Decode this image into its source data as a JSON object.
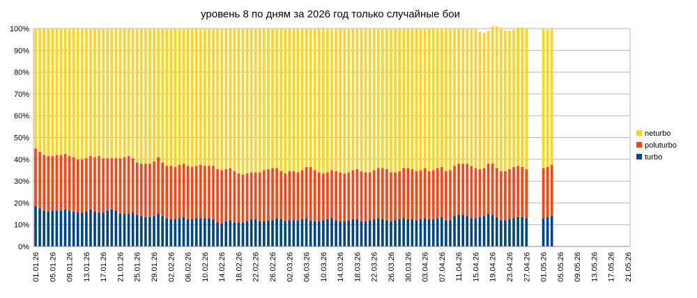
{
  "chart_data": {
    "type": "bar",
    "stacked": true,
    "percent_stacked": true,
    "title": "уровень 8 по дням за 2026 год только случайные бои",
    "xlabel": "",
    "ylabel": "",
    "ylim": [
      0,
      100
    ],
    "y_ticks": [
      "0%",
      "10%",
      "20%",
      "30%",
      "40%",
      "50%",
      "60%",
      "70%",
      "80%",
      "90%",
      "100%"
    ],
    "grid": true,
    "legend_position": "right",
    "x_start": "01.01.26",
    "x_end": "21.05.26",
    "missing_dates": [
      "28.04.26",
      "29.04.26",
      "30.04.26"
    ],
    "tick_labels": [
      "01.01.26",
      "05.01.26",
      "09.01.26",
      "13.01.26",
      "17.01.26",
      "21.01.26",
      "25.01.26",
      "29.01.26",
      "02.02.26",
      "06.02.26",
      "10.02.26",
      "14.02.26",
      "18.02.26",
      "22.02.26",
      "26.02.26",
      "02.03.26",
      "06.03.26",
      "10.03.26",
      "14.03.26",
      "18.03.26",
      "22.03.26",
      "26.03.26",
      "30.03.26",
      "03.04.26",
      "07.04.26",
      "11.04.26",
      "15.04.26",
      "19.04.26",
      "23.04.26",
      "27.04.26",
      "01.05.26",
      "05.05.26",
      "09.05.26",
      "13.05.26",
      "17.05.26",
      "21.05.26"
    ],
    "colors": {
      "turbo": "#004586",
      "poluturbo": "#ff420e",
      "neturbo": "#ffd320"
    },
    "series": [
      {
        "name": "turbo",
        "values": [
          18.5,
          17.5,
          16.5,
          16,
          16.5,
          16.5,
          16.5,
          17,
          16.5,
          16,
          15.5,
          15.5,
          16,
          17,
          16,
          15.5,
          15.5,
          16.5,
          17,
          16.5,
          15,
          15,
          15,
          15.5,
          14.5,
          14,
          13.5,
          13.5,
          14,
          15,
          14,
          13,
          12.5,
          12.5,
          13,
          13.5,
          12.5,
          12.5,
          13,
          13,
          13,
          13,
          12.5,
          11,
          10.5,
          11.5,
          12,
          11,
          11,
          11,
          11.5,
          12.5,
          12.5,
          11.5,
          11.5,
          12,
          12,
          13,
          12.5,
          11.5,
          12,
          12,
          12,
          12.5,
          13,
          12,
          11.5,
          11.5,
          12,
          12.5,
          13,
          12,
          11.5,
          11.5,
          12,
          12.5,
          12.5,
          11.5,
          11.5,
          12,
          12.5,
          13,
          12.5,
          12,
          11.5,
          12,
          12.5,
          13,
          12.5,
          12.5,
          12,
          12.5,
          13,
          12.5,
          12.5,
          13,
          13.5,
          12,
          12,
          14,
          14.5,
          14.5,
          14,
          13,
          13,
          13.5,
          14,
          15,
          14.5,
          13.5,
          12,
          12,
          12.5,
          13,
          13.5,
          13.5,
          13,
          13,
          13.5,
          14
        ]
      },
      {
        "name": "poluturbo",
        "values": [
          26.5,
          26,
          25.5,
          25.5,
          25,
          25.5,
          25.5,
          25.5,
          25,
          25,
          24.5,
          24.5,
          24.5,
          24.5,
          25,
          26,
          25,
          24,
          23.5,
          24,
          25.5,
          26,
          26.5,
          25,
          24,
          24,
          24.5,
          24.5,
          25,
          26,
          24.5,
          24,
          24.5,
          24,
          24.5,
          24.5,
          24.5,
          24,
          24,
          24.5,
          24,
          24,
          24.5,
          24.5,
          24.5,
          24,
          24,
          23.5,
          22.5,
          22,
          22,
          21.5,
          21.5,
          22.5,
          23.5,
          23.5,
          24,
          23,
          22,
          22,
          22.5,
          22.5,
          22,
          22.5,
          23.5,
          24.5,
          23.5,
          22.5,
          21.5,
          21.5,
          22,
          22.5,
          22.5,
          22,
          22,
          22.5,
          23,
          23,
          22.5,
          22,
          22.5,
          23,
          23.5,
          23.5,
          22.5,
          22,
          22,
          23,
          23.5,
          23,
          22.5,
          22.5,
          23,
          22,
          22.5,
          23,
          23,
          22.5,
          23,
          23,
          23.5,
          23.5,
          24,
          24,
          23,
          22,
          22,
          23,
          23.5,
          22.5,
          22.5,
          22.5,
          23,
          23.5,
          23.5,
          23,
          22.5,
          23,
          23,
          23.5
        ]
      },
      {
        "name": "neturbo",
        "values": [
          55,
          56.5,
          58,
          58.5,
          58.5,
          58,
          58,
          57.5,
          58.5,
          59,
          60,
          60,
          59.5,
          58.5,
          59,
          58.5,
          59.5,
          59.5,
          59.5,
          59.5,
          59.5,
          59,
          58.5,
          59.5,
          61.5,
          62,
          62,
          62,
          61,
          59,
          61.5,
          63,
          63,
          63.5,
          62.5,
          62,
          63,
          63.5,
          63,
          62.5,
          63,
          63,
          63,
          64.5,
          65,
          64.5,
          64,
          65.5,
          66.5,
          67,
          66.5,
          66,
          66,
          66,
          65,
          64.5,
          64,
          64,
          65.5,
          66.5,
          65.5,
          65.5,
          66,
          65,
          63.5,
          63.5,
          65,
          66,
          66.5,
          66,
          65,
          65.5,
          66,
          66.5,
          66,
          65,
          64.5,
          65.5,
          66,
          66,
          65,
          64,
          64,
          64.5,
          66,
          66,
          65.5,
          64,
          64,
          64.5,
          65.5,
          65,
          64,
          65.5,
          65,
          64,
          63.5,
          65.5,
          65,
          63,
          62,
          62,
          62,
          63,
          64,
          63,
          62,
          61,
          63,
          65,
          66,
          64.5,
          63.5,
          63,
          63.5,
          64,
          64.5,
          64,
          63,
          62.5
        ]
      }
    ]
  }
}
